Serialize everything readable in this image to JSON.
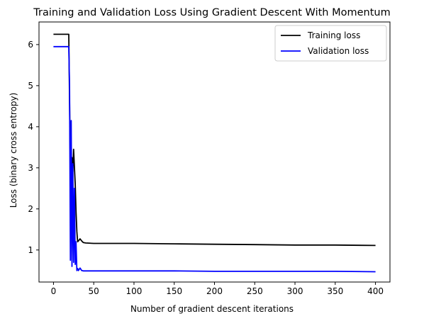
{
  "chart_data": {
    "type": "line",
    "title": "Training and Validation Loss Using Gradient Descent With Momentum",
    "xlabel": "Number of gradient descent iterations",
    "ylabel": "Loss (binary cross entropy)",
    "xlim": [
      -18,
      418
    ],
    "ylim": [
      0.22,
      6.55
    ],
    "xticks": [
      0,
      50,
      100,
      150,
      200,
      250,
      300,
      350,
      400
    ],
    "yticks": [
      1,
      2,
      3,
      4,
      5,
      6
    ],
    "grid": false,
    "legend_position": "top-right",
    "series": [
      {
        "name": "Training loss",
        "color": "#000000",
        "x": [
          0,
          10,
          19,
          20,
          21,
          22,
          23,
          24,
          25,
          26,
          27,
          28,
          29,
          30,
          31,
          33,
          35,
          37,
          40,
          50,
          100,
          150,
          200,
          250,
          300,
          350,
          400
        ],
        "y": [
          6.25,
          6.25,
          6.25,
          4.6,
          2.85,
          3.0,
          3.25,
          2.9,
          3.45,
          3.0,
          2.6,
          1.95,
          1.45,
          1.2,
          1.22,
          1.27,
          1.22,
          1.18,
          1.17,
          1.16,
          1.16,
          1.15,
          1.14,
          1.13,
          1.12,
          1.12,
          1.11
        ]
      },
      {
        "name": "Validation loss",
        "color": "#0000ff",
        "x": [
          0,
          10,
          19,
          20,
          21,
          22,
          23,
          24,
          25,
          26,
          27,
          28,
          29,
          30,
          31,
          33,
          35,
          37,
          40,
          50,
          100,
          150,
          200,
          250,
          300,
          350,
          400
        ],
        "y": [
          5.95,
          5.95,
          5.95,
          5.0,
          0.75,
          4.15,
          0.6,
          3.1,
          0.7,
          2.5,
          0.65,
          1.2,
          0.5,
          0.55,
          0.5,
          0.56,
          0.5,
          0.49,
          0.49,
          0.49,
          0.49,
          0.49,
          0.48,
          0.48,
          0.48,
          0.48,
          0.47
        ]
      }
    ]
  }
}
